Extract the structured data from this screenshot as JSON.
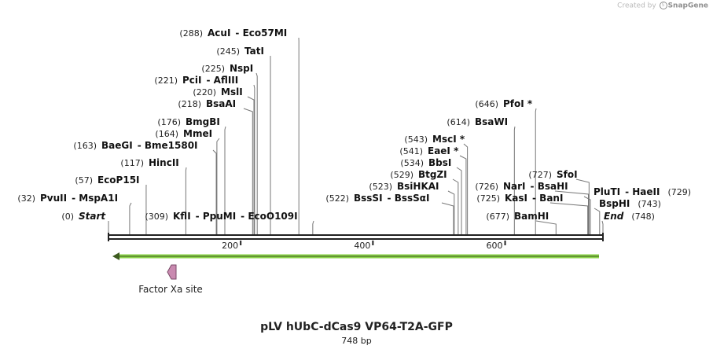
{
  "credit": {
    "prefix": "Created by",
    "brand": "SnapGene"
  },
  "title": "pLV hUbC-dCas9 VP64-T2A-GFP",
  "length_label": "748 bp",
  "sequence_length": 748,
  "ruler_ticks": [
    "200",
    "400",
    "600"
  ],
  "feature_label": "Factor Xa site",
  "sites": [
    {
      "pos": 288,
      "pos_label": "(288)",
      "label": "AcuI",
      "extra": "Eco57MI",
      "side": "left"
    },
    {
      "pos": 245,
      "pos_label": "(245)",
      "label": "TatI",
      "side": "left"
    },
    {
      "pos": 225,
      "pos_label": "(225)",
      "label": "NspI",
      "side": "left"
    },
    {
      "pos": 221,
      "pos_label": "(221)",
      "label": "PciI",
      "extra": "AflIII",
      "side": "left"
    },
    {
      "pos": 220,
      "pos_label": "(220)",
      "label": "MslI",
      "side": "left"
    },
    {
      "pos": 218,
      "pos_label": "(218)",
      "label": "BsaAI",
      "side": "left"
    },
    {
      "pos": 176,
      "pos_label": "(176)",
      "label": "BmgBI",
      "side": "left"
    },
    {
      "pos": 164,
      "pos_label": "(164)",
      "label": "MmeI",
      "side": "left"
    },
    {
      "pos": 163,
      "pos_label": "(163)",
      "label": "BaeGI",
      "extra": "Bme1580I",
      "side": "left"
    },
    {
      "pos": 117,
      "pos_label": "(117)",
      "label": "HincII",
      "side": "left"
    },
    {
      "pos": 57,
      "pos_label": "(57)",
      "label": "EcoP15I",
      "side": "left"
    },
    {
      "pos": 32,
      "pos_label": "(32)",
      "label": "PvuII",
      "extra": "MspA1I",
      "side": "left"
    },
    {
      "pos": 0,
      "pos_label": "(0)",
      "label": "Start",
      "italic": true,
      "side": "left"
    },
    {
      "pos": 309,
      "pos_label": "(309)",
      "label": "KflI",
      "extra": "PpuMI",
      "extra2": "EcoO109I",
      "side": "left"
    },
    {
      "pos": 646,
      "pos_label": "(646)",
      "label": "PfoI *",
      "side": "left"
    },
    {
      "pos": 614,
      "pos_label": "(614)",
      "label": "BsaWI",
      "side": "left"
    },
    {
      "pos": 543,
      "pos_label": "(543)",
      "label": "MscI *",
      "side": "left"
    },
    {
      "pos": 541,
      "pos_label": "(541)",
      "label": "EaeI *",
      "side": "left"
    },
    {
      "pos": 534,
      "pos_label": "(534)",
      "label": "BbsI",
      "side": "left"
    },
    {
      "pos": 529,
      "pos_label": "(529)",
      "label": "BtgZI",
      "side": "left"
    },
    {
      "pos": 523,
      "pos_label": "(523)",
      "label": "BsiHKAI",
      "side": "left"
    },
    {
      "pos": 522,
      "pos_label": "(522)",
      "label": "BssSI",
      "extra": "BssSαI",
      "side": "left"
    },
    {
      "pos": 726,
      "pos_label": "(726)",
      "label": "NarI",
      "extra": "BsaHI",
      "side": "left"
    },
    {
      "pos": 725,
      "pos_label": "(725)",
      "label": "KasI",
      "extra": "BanI",
      "side": "left"
    },
    {
      "pos": 677,
      "pos_label": "(677)",
      "label": "BamHI",
      "side": "left"
    },
    {
      "pos": 727,
      "pos_label": "(727)",
      "label": "SfoI",
      "side": "left"
    },
    {
      "pos": 729,
      "pos_label": "(729)",
      "label": "PluTI",
      "extra": "HaeII",
      "side": "right"
    },
    {
      "pos": 743,
      "pos_label": "(743)",
      "label": "BspHI",
      "side": "right"
    },
    {
      "pos": 748,
      "pos_label": "(748)",
      "label": "End",
      "italic": true,
      "side": "right"
    }
  ]
}
